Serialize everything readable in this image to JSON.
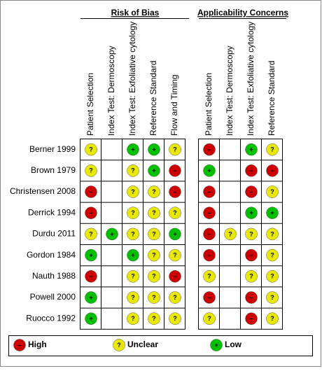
{
  "groups": [
    {
      "title": "Risk of Bias",
      "columns": [
        "Patient Selection",
        "Index Test: Dermoscopy",
        "Index Test: Exfoliative cytology",
        "Reference Standard",
        "Flow and Timing"
      ]
    },
    {
      "title": "Applicability Concerns",
      "columns": [
        "Patient Selection",
        "Index Test: Dermoscopy",
        "Index Test: Exfoliative cytology",
        "Reference Standard"
      ]
    }
  ],
  "rows": [
    {
      "study": "Berner 1999",
      "cells": [
        [
          "?",
          null,
          "+",
          "+",
          "?"
        ],
        [
          "–",
          null,
          "+",
          "?"
        ]
      ]
    },
    {
      "study": "Brown 1979",
      "cells": [
        [
          "?",
          null,
          "?",
          "+",
          "–"
        ],
        [
          "+",
          null,
          "–",
          "–"
        ]
      ]
    },
    {
      "study": "Christensen 2008",
      "cells": [
        [
          "–",
          null,
          "?",
          "?",
          "–"
        ],
        [
          "–",
          null,
          "–",
          "?"
        ]
      ]
    },
    {
      "study": "Derrick 1994",
      "cells": [
        [
          "–",
          null,
          "?",
          "?",
          "?"
        ],
        [
          "–",
          null,
          "+",
          "+"
        ]
      ]
    },
    {
      "study": "Durdu 2011",
      "cells": [
        [
          "?",
          "+",
          "?",
          "?",
          "+"
        ],
        [
          "–",
          "?",
          "?",
          "?"
        ]
      ]
    },
    {
      "study": "Gordon 1984",
      "cells": [
        [
          "+",
          null,
          "+",
          "?",
          "?"
        ],
        [
          "–",
          null,
          "–",
          "?"
        ]
      ]
    },
    {
      "study": "Nauth 1988",
      "cells": [
        [
          "–",
          null,
          "?",
          "?",
          "–"
        ],
        [
          "?",
          null,
          "?",
          "?"
        ]
      ]
    },
    {
      "study": "Powell 2000",
      "cells": [
        [
          "+",
          null,
          "?",
          "?",
          "?"
        ],
        [
          "–",
          null,
          "–",
          "?"
        ]
      ]
    },
    {
      "study": "Ruocco 1992",
      "cells": [
        [
          "+",
          null,
          "?",
          "?",
          "?"
        ],
        [
          "?",
          null,
          "–",
          "?"
        ]
      ]
    }
  ],
  "legend": [
    {
      "symbol": "–",
      "label": "High",
      "color": "#cc0000"
    },
    {
      "symbol": "?",
      "label": "Unclear",
      "color": "#e8e800"
    },
    {
      "symbol": "+",
      "label": "Low",
      "color": "#00c000"
    }
  ]
}
